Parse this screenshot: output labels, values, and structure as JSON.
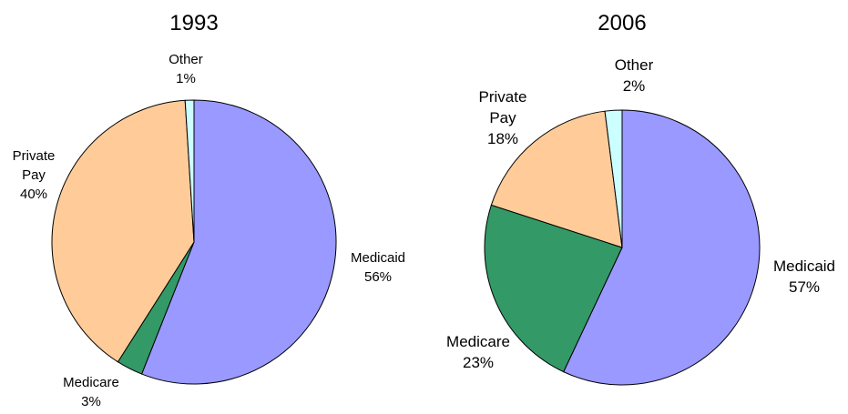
{
  "chart_data": [
    {
      "type": "pie",
      "title": "1993",
      "categories": [
        "Medicaid",
        "Medicare",
        "Private Pay",
        "Other"
      ],
      "values": [
        56,
        3,
        40,
        1
      ],
      "value_labels": [
        "56%",
        "3%",
        "40%",
        "1%"
      ],
      "colors": [
        "#9999ff",
        "#339966",
        "#ffcc99",
        "#ccffff"
      ]
    },
    {
      "type": "pie",
      "title": "2006",
      "categories": [
        "Medicaid",
        "Medicare",
        "Private Pay",
        "Other"
      ],
      "values": [
        57,
        23,
        18,
        2
      ],
      "value_labels": [
        "57%",
        "23%",
        "18%",
        "2%"
      ],
      "colors": [
        "#9999ff",
        "#339966",
        "#ffcc99",
        "#ccffff"
      ]
    }
  ]
}
